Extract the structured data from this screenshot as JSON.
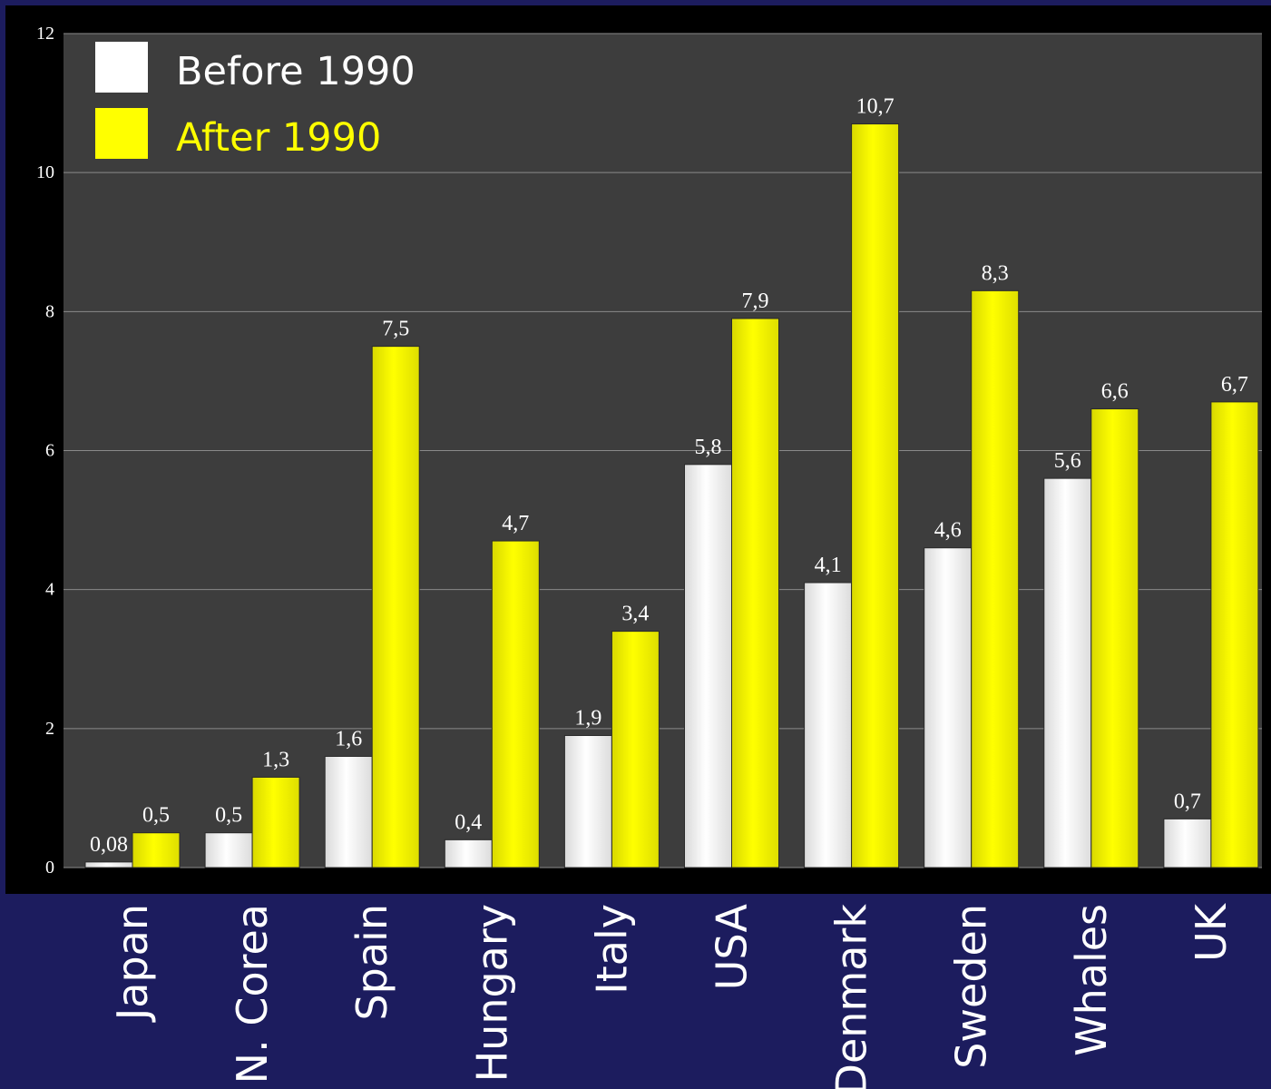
{
  "chart_data": {
    "type": "bar",
    "categories": [
      "Japan",
      "N. Corea",
      "Spain",
      "Hungary",
      "Italy",
      "USA",
      "Denmark",
      "Sweden",
      "Whales",
      "UK"
    ],
    "series": [
      {
        "name": "Before 1990",
        "values": [
          0.08,
          0.5,
          1.6,
          0.4,
          1.9,
          5.8,
          4.1,
          4.6,
          5.6,
          0.7
        ],
        "labels": [
          "0,08",
          "0,5",
          "1,6",
          "0,4",
          "1,9",
          "5,8",
          "4,1",
          "4,6",
          "5,6",
          "0,7"
        ],
        "color": "#ffffff"
      },
      {
        "name": "After 1990",
        "values": [
          0.5,
          1.3,
          7.5,
          4.7,
          3.4,
          7.9,
          10.7,
          8.3,
          6.6,
          6.7
        ],
        "labels": [
          "0,5",
          "1,3",
          "7,5",
          "4,7",
          "3,4",
          "7,9",
          "10,7",
          "8,3",
          "6,6",
          "6,7"
        ],
        "color": "#ffff00"
      }
    ],
    "ylim": [
      0,
      12
    ],
    "yticks": [
      "0",
      "2",
      "4",
      "6",
      "8",
      "10",
      "12"
    ],
    "grid": true,
    "legend_position": "top-left",
    "colors": {
      "page_background": "#1c1c5e",
      "frame": "#000000",
      "plot_background": "#3d3d3d",
      "gridline": "#8a8a8a",
      "axis_text": "#ffffff",
      "category_text": "#ffffff"
    }
  }
}
